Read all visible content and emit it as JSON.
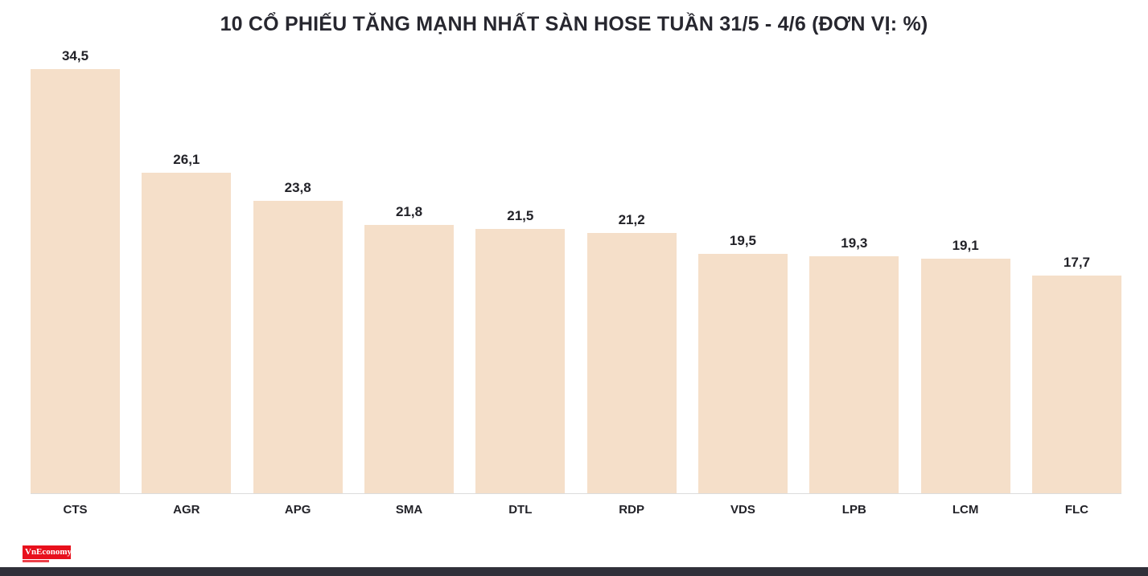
{
  "chart_data": {
    "type": "bar",
    "title": "10 CỔ PHIẾU TĂNG MẠNH NHẤT SÀN HOSE TUẦN 31/5 - 4/6 (ĐƠN VỊ: %)",
    "categories": [
      "CTS",
      "AGR",
      "APG",
      "SMA",
      "DTL",
      "RDP",
      "VDS",
      "LPB",
      "LCM",
      "FLC"
    ],
    "values": [
      34.5,
      26.1,
      23.8,
      21.8,
      21.5,
      21.2,
      19.5,
      19.3,
      19.1,
      17.7
    ],
    "value_labels": [
      "34,5",
      "26,1",
      "23,8",
      "21,8",
      "21,5",
      "21,2",
      "19,5",
      "19,3",
      "19,1",
      "17,7"
    ],
    "xlabel": "",
    "ylabel": "",
    "ylim": [
      0,
      34.5
    ],
    "grid": false,
    "legend": "none",
    "bar_color": "#f5dfc9",
    "label_color": "#222228",
    "baseline_color": "#dcdcdc"
  },
  "branding": {
    "logo_text": "VnEconomy",
    "logo_bg": "#e8101c"
  }
}
